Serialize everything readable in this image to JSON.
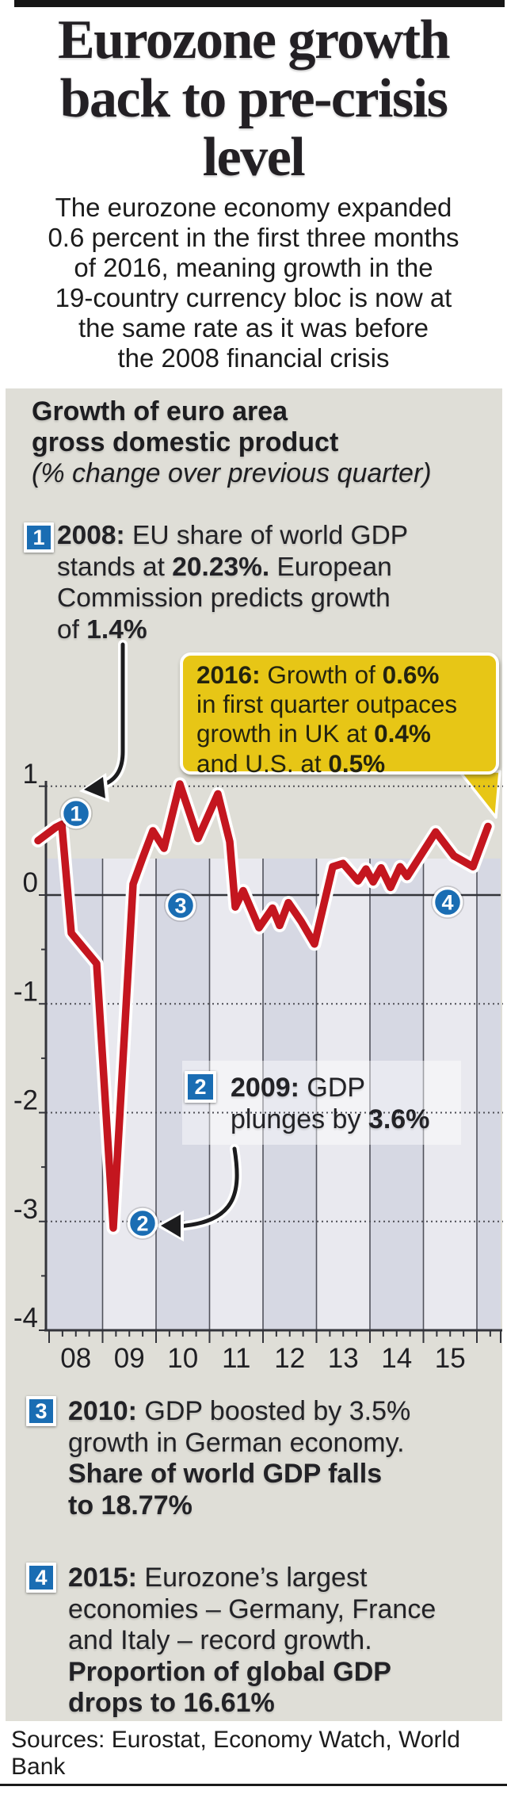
{
  "header": {
    "title_lines": [
      "Eurozone growth",
      "back to pre-crisis",
      "level"
    ],
    "subtitle": "The eurozone economy expanded\n0.6 percent in the first three months\nof 2016, meaning growth in the\n19-country currency bloc is now at\nthe same rate as it was before\nthe 2008 financial crisis"
  },
  "panel": {
    "chart_title_line1": "Growth of euro area",
    "chart_title_line2": "gross domestic product",
    "chart_title_sub": "(% change over previous quarter)"
  },
  "annotations": {
    "a1": {
      "badge": "1",
      "lines": [
        [
          {
            "t": "2008:",
            "b": 1
          },
          {
            "t": " EU share of world GDP"
          }
        ],
        [
          {
            "t": "stands at "
          },
          {
            "t": "20.23%.",
            "b": 1
          },
          {
            "t": " European"
          }
        ],
        [
          {
            "t": "Commission predicts growth"
          }
        ],
        [
          {
            "t": "of "
          },
          {
            "t": "1.4%",
            "b": 1
          }
        ]
      ]
    },
    "callout": {
      "lines": [
        [
          {
            "t": "2016:",
            "b": 1
          },
          {
            "t": " Growth of "
          },
          {
            "t": "0.6%",
            "b": 1
          }
        ],
        [
          {
            "t": "in first quarter outpaces"
          }
        ],
        [
          {
            "t": "growth in UK at "
          },
          {
            "t": "0.4%",
            "b": 1
          }
        ],
        [
          {
            "t": "and U.S. at "
          },
          {
            "t": "0.5%",
            "b": 1
          }
        ]
      ]
    },
    "a2": {
      "badge": "2",
      "lines": [
        [
          {
            "t": "2009:",
            "b": 1
          },
          {
            "t": " GDP"
          }
        ],
        [
          {
            "t": "plunges by "
          },
          {
            "t": "3.6%",
            "b": 1
          }
        ]
      ]
    },
    "a3": {
      "badge": "3",
      "lines": [
        [
          {
            "t": "2010:",
            "b": 1
          },
          {
            "t": " GDP boosted by 3.5%"
          }
        ],
        [
          {
            "t": "growth in German economy."
          }
        ],
        [
          {
            "t": "Share of world GDP falls",
            "b": 1
          }
        ],
        [
          {
            "t": "to 18.77%",
            "b": 1
          }
        ]
      ]
    },
    "a4": {
      "badge": "4",
      "lines": [
        [
          {
            "t": "2015:",
            "b": 1
          },
          {
            "t": " Eurozone’s largest"
          }
        ],
        [
          {
            "t": "economies – Germany, France"
          }
        ],
        [
          {
            "t": "and Italy – record growth."
          }
        ],
        [
          {
            "t": "Proportion of global GDP",
            "b": 1
          }
        ],
        [
          {
            "t": "drops to 16.61%",
            "b": 1
          }
        ]
      ]
    }
  },
  "footer": {
    "sources": "Sources: Eurostat, Economy Watch, World Bank"
  },
  "colors": {
    "accent_red": "#c4161f",
    "accent_blue": "#1a6db3",
    "callout_yellow": "#e7c616",
    "panel_gray": "#dfded7",
    "band_dark": "#d6d8e3",
    "band_light": "#e9e9ef",
    "grid_dark": "#33343a",
    "grid_dot": "#4e4e55",
    "band_line": "#51525c"
  },
  "chart_data": {
    "type": "line",
    "title": "Growth of euro area gross domestic product",
    "ylabel": "% change over previous quarter",
    "x_year_labels": [
      "08",
      "09",
      "10",
      "11",
      "12",
      "13",
      "14",
      "15"
    ],
    "y_ticks": [
      1,
      0,
      -1,
      -2,
      -3,
      -4
    ],
    "ylim": [
      -4,
      1
    ],
    "xlim_years": [
      2008,
      2016.45
    ],
    "grid": "dotted-horizontal",
    "series": [
      [
        2007.793,
        0.5
      ],
      [
        2008.119,
        0.62
      ],
      [
        2008.237,
        0.65
      ],
      [
        2008.415,
        -0.35
      ],
      [
        2008.652,
        -0.49
      ],
      [
        2008.889,
        -0.63
      ],
      [
        2009.2,
        -3.06
      ],
      [
        2009.57,
        0.1
      ],
      [
        2009.748,
        0.34
      ],
      [
        2009.941,
        0.59
      ],
      [
        2010.148,
        0.43
      ],
      [
        2010.444,
        1.02
      ],
      [
        2010.785,
        0.52
      ],
      [
        2011.156,
        0.93
      ],
      [
        2011.378,
        0.49
      ],
      [
        2011.481,
        -0.11
      ],
      [
        2011.63,
        0.04
      ],
      [
        2011.926,
        -0.3
      ],
      [
        2012.178,
        -0.12
      ],
      [
        2012.311,
        -0.28
      ],
      [
        2012.474,
        -0.07
      ],
      [
        2012.711,
        -0.24
      ],
      [
        2012.963,
        -0.45
      ],
      [
        2013.304,
        0.26
      ],
      [
        2013.496,
        0.29
      ],
      [
        2013.778,
        0.13
      ],
      [
        2013.926,
        0.24
      ],
      [
        2014.059,
        0.12
      ],
      [
        2014.207,
        0.25
      ],
      [
        2014.385,
        0.07
      ],
      [
        2014.563,
        0.26
      ],
      [
        2014.696,
        0.17
      ],
      [
        2015.23,
        0.58
      ],
      [
        2015.57,
        0.36
      ],
      [
        2015.926,
        0.26
      ],
      [
        2016.207,
        0.63
      ]
    ],
    "markers": [
      {
        "label": "1",
        "year": 2008.504,
        "v": 0.75
      },
      {
        "label": "2",
        "year": 2009.748,
        "v": -3.016
      },
      {
        "label": "3",
        "year": 2010.459,
        "v": -0.095
      },
      {
        "label": "4",
        "year": 2015.452,
        "v": -0.066
      }
    ]
  }
}
